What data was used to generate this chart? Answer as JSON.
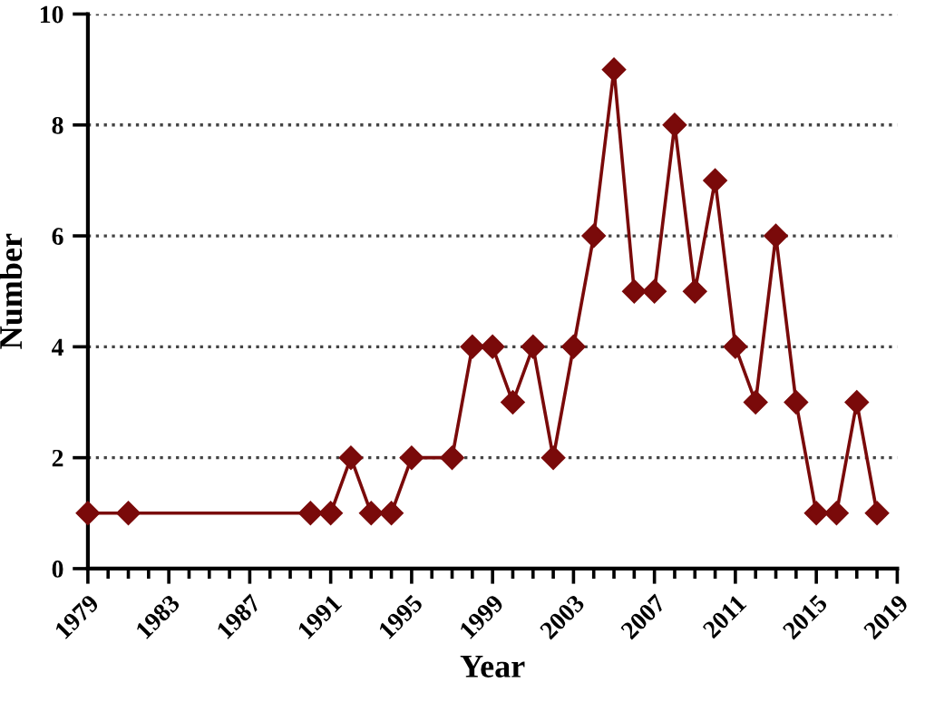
{
  "chart_data": {
    "type": "line",
    "xlabel": "Year",
    "ylabel": "Number",
    "x": [
      1979,
      1981,
      1990,
      1991,
      1992,
      1993,
      1994,
      1995,
      1997,
      1998,
      1999,
      2000,
      2001,
      2002,
      2003,
      2004,
      2005,
      2006,
      2007,
      2008,
      2009,
      2010,
      2011,
      2012,
      2013,
      2014,
      2015,
      2016,
      2017,
      2018
    ],
    "series": [
      {
        "color": "#7a0a0a",
        "values": [
          1,
          1,
          1,
          1,
          2,
          1,
          1,
          2,
          2,
          4,
          4,
          3,
          4,
          2,
          4,
          6,
          9,
          5,
          5,
          8,
          5,
          7,
          4,
          3,
          6,
          3,
          1,
          1,
          3,
          1
        ]
      }
    ],
    "xlim": [
      1979,
      2019
    ],
    "xticks": [
      1979,
      1983,
      1987,
      1991,
      1995,
      1999,
      2003,
      2007,
      2011,
      2015,
      2019
    ],
    "ylim": [
      0,
      10
    ],
    "yticks": [
      0,
      2,
      4,
      6,
      8,
      10
    ],
    "grid": "y",
    "marker": "diamond",
    "line_style": "solid",
    "legend": false
  }
}
